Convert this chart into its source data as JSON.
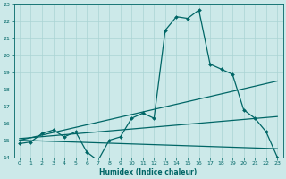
{
  "xlabel": "Humidex (Indice chaleur)",
  "bg_color": "#cce9e9",
  "grid_color": "#aad4d4",
  "line_color": "#006666",
  "xlim": [
    -0.5,
    23.5
  ],
  "ylim": [
    14,
    23
  ],
  "xticks": [
    0,
    1,
    2,
    3,
    4,
    5,
    6,
    7,
    8,
    9,
    10,
    11,
    12,
    13,
    14,
    15,
    16,
    17,
    18,
    19,
    20,
    21,
    22,
    23
  ],
  "yticks": [
    14,
    15,
    16,
    17,
    18,
    19,
    20,
    21,
    22,
    23
  ],
  "series": [
    {
      "x": [
        0,
        1,
        2,
        3,
        4,
        5,
        6,
        7,
        8,
        9,
        10,
        11,
        12,
        13,
        14,
        15,
        16,
        17,
        18,
        19,
        20,
        21,
        22,
        23
      ],
      "y": [
        14.8,
        14.9,
        15.4,
        15.6,
        15.2,
        15.5,
        14.3,
        13.8,
        15.0,
        15.2,
        16.3,
        16.6,
        16.3,
        21.5,
        22.3,
        22.2,
        22.7,
        19.5,
        19.2,
        18.9,
        16.8,
        16.3,
        15.5,
        14.0
      ],
      "marker": "D",
      "markersize": 2.0,
      "linewidth": 0.9
    },
    {
      "x": [
        0,
        23
      ],
      "y": [
        15.0,
        18.5
      ],
      "marker": null,
      "linewidth": 0.9
    },
    {
      "x": [
        0,
        23
      ],
      "y": [
        15.1,
        16.4
      ],
      "marker": null,
      "linewidth": 0.9
    },
    {
      "x": [
        0,
        23
      ],
      "y": [
        15.0,
        14.5
      ],
      "marker": null,
      "linewidth": 0.9
    }
  ]
}
